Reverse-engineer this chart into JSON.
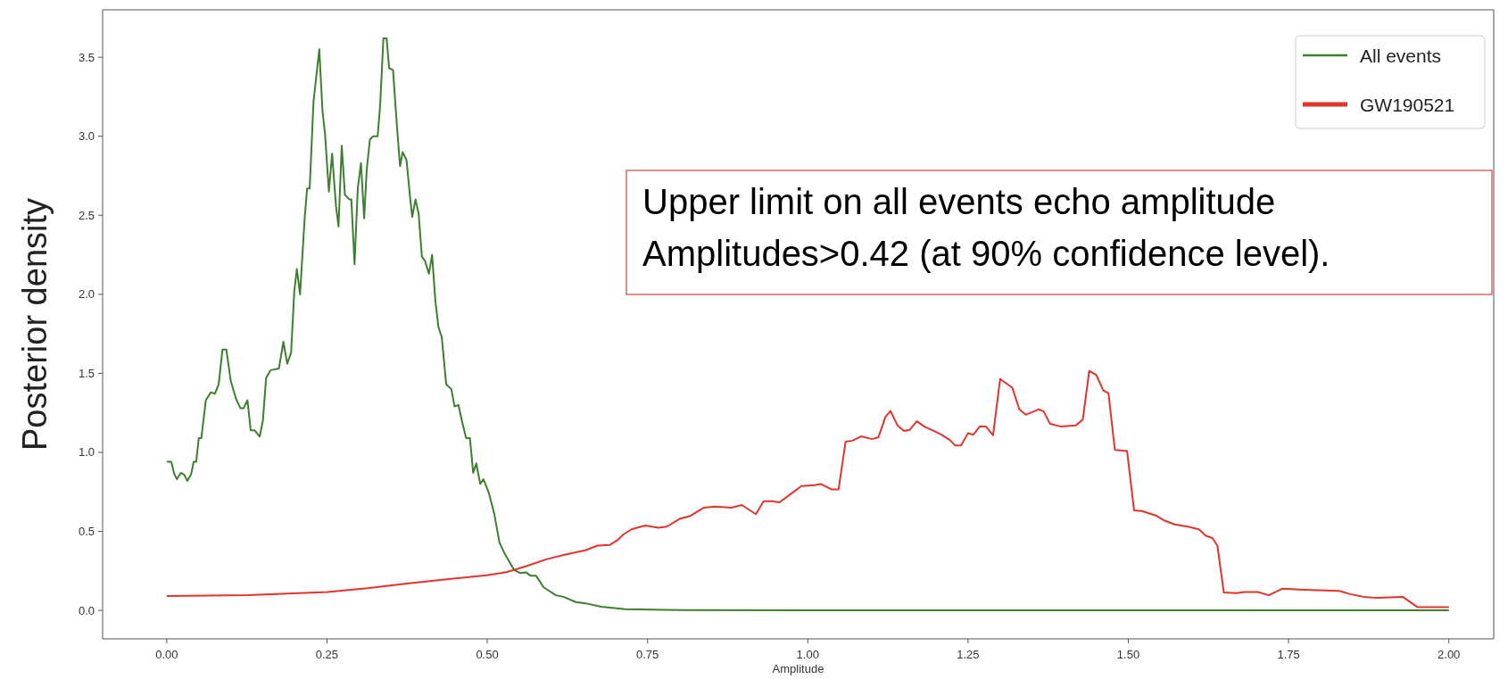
{
  "chart_data": {
    "type": "line",
    "xlabel": "Amplitude",
    "ylabel": "Posterior density",
    "xlim": [
      -0.1,
      2.07
    ],
    "ylim": [
      -0.18,
      3.8
    ],
    "xticks": [
      {
        "value": 0,
        "label": "0.00"
      },
      {
        "value": 0.25,
        "label": "0.25"
      },
      {
        "value": 0.5,
        "label": "0.50"
      },
      {
        "value": 0.75,
        "label": "0.75"
      },
      {
        "value": 1,
        "label": "1.00"
      },
      {
        "value": 1.25,
        "label": "1.25"
      },
      {
        "value": 1.5,
        "label": "1.50"
      },
      {
        "value": 1.75,
        "label": "1.75"
      },
      {
        "value": 2,
        "label": "2.00"
      }
    ],
    "yticks": [
      {
        "value": 0,
        "label": "0.0"
      },
      {
        "value": 0.5,
        "label": "0.5"
      },
      {
        "value": 1,
        "label": "1.0"
      },
      {
        "value": 1.5,
        "label": "1.5"
      },
      {
        "value": 2,
        "label": "2.0"
      },
      {
        "value": 2.5,
        "label": "2.5"
      },
      {
        "value": 3,
        "label": "3.0"
      },
      {
        "value": 3.5,
        "label": "3.5"
      }
    ],
    "grid": false,
    "legend": "top right",
    "marker": "none",
    "line_style": "solid",
    "annotations": [
      "Upper limit on all events echo amplitude",
      "Amplitudes>0.42 (at 90% confidence level)."
    ],
    "series": [
      {
        "name": "All events",
        "color": "#3d7f2f",
        "x": [
          0,
          0.007,
          0.012,
          0.016,
          0.022,
          0.027,
          0.032,
          0.038,
          0.042,
          0.046,
          0.05,
          0.054,
          0.061,
          0.069,
          0.075,
          0.081,
          0.087,
          0.093,
          0.1,
          0.108,
          0.115,
          0.12,
          0.126,
          0.131,
          0.137,
          0.145,
          0.15,
          0.155,
          0.162,
          0.175,
          0.182,
          0.188,
          0.194,
          0.199,
          0.203,
          0.208,
          0.215,
          0.219,
          0.223,
          0.229,
          0.238,
          0.243,
          0.247,
          0.253,
          0.258,
          0.264,
          0.268,
          0.273,
          0.278,
          0.285,
          0.288,
          0.293,
          0.298,
          0.303,
          0.308,
          0.312,
          0.317,
          0.322,
          0.329,
          0.333,
          0.338,
          0.343,
          0.347,
          0.353,
          0.359,
          0.364,
          0.368,
          0.374,
          0.38,
          0.383,
          0.388,
          0.393,
          0.398,
          0.403,
          0.409,
          0.414,
          0.419,
          0.424,
          0.429,
          0.436,
          0.444,
          0.449,
          0.455,
          0.461,
          0.467,
          0.473,
          0.478,
          0.483,
          0.489,
          0.494,
          0.502,
          0.511,
          0.519,
          0.527,
          0.542,
          0.551,
          0.561,
          0.567,
          0.576,
          0.588,
          0.607,
          0.619,
          0.638,
          0.653,
          0.678,
          0.715,
          0.777,
          1,
          1.5,
          2
        ],
        "values": [
          0.94,
          0.94,
          0.86,
          0.83,
          0.87,
          0.86,
          0.82,
          0.86,
          0.94,
          0.94,
          1.09,
          1.09,
          1.33,
          1.38,
          1.37,
          1.43,
          1.65,
          1.65,
          1.45,
          1.34,
          1.28,
          1.28,
          1.33,
          1.14,
          1.14,
          1.1,
          1.2,
          1.47,
          1.52,
          1.53,
          1.7,
          1.56,
          1.63,
          2.02,
          2.16,
          2,
          2.47,
          2.67,
          2.67,
          3.22,
          3.55,
          3.16,
          3.01,
          2.65,
          2.89,
          2.56,
          2.43,
          2.94,
          2.63,
          2.6,
          2.6,
          2.19,
          2.67,
          2.83,
          2.48,
          2.79,
          2.98,
          3,
          3,
          3.2,
          3.62,
          3.62,
          3.43,
          3.42,
          3.07,
          2.81,
          2.9,
          2.85,
          2.6,
          2.49,
          2.6,
          2.51,
          2.24,
          2.21,
          2.13,
          2.25,
          1.96,
          1.79,
          1.73,
          1.43,
          1.4,
          1.29,
          1.3,
          1.19,
          1.09,
          1.09,
          0.87,
          0.93,
          0.8,
          0.83,
          0.75,
          0.61,
          0.43,
          0.36,
          0.255,
          0.237,
          0.24,
          0.22,
          0.22,
          0.146,
          0.096,
          0.086,
          0.053,
          0.045,
          0.023,
          0.008,
          0.003,
          0,
          0,
          0
        ]
      },
      {
        "name": "GW190521",
        "color": "#e0352b",
        "x": [
          0,
          0.127,
          0.251,
          0.313,
          0.375,
          0.437,
          0.499,
          0.53,
          0.561,
          0.592,
          0.622,
          0.653,
          0.672,
          0.691,
          0.703,
          0.712,
          0.725,
          0.746,
          0.767,
          0.78,
          0.801,
          0.817,
          0.838,
          0.855,
          0.881,
          0.897,
          0.919,
          0.931,
          0.944,
          0.956,
          0.973,
          0.99,
          1.011,
          1.02,
          1.037,
          1.048,
          1.059,
          1.07,
          1.083,
          1.1,
          1.11,
          1.121,
          1.129,
          1.14,
          1.15,
          1.159,
          1.17,
          1.182,
          1.197,
          1.209,
          1.222,
          1.23,
          1.239,
          1.25,
          1.258,
          1.268,
          1.278,
          1.289,
          1.3,
          1.319,
          1.33,
          1.34,
          1.36,
          1.368,
          1.378,
          1.395,
          1.418,
          1.429,
          1.439,
          1.45,
          1.461,
          1.469,
          1.479,
          1.498,
          1.509,
          1.521,
          1.542,
          1.555,
          1.572,
          1.593,
          1.61,
          1.621,
          1.631,
          1.639,
          1.649,
          1.669,
          1.681,
          1.702,
          1.719,
          1.74,
          1.774,
          1.829,
          1.846,
          1.867,
          1.888,
          1.928,
          1.951,
          2
        ],
        "values": [
          0.091,
          0.096,
          0.116,
          0.14,
          0.17,
          0.197,
          0.222,
          0.242,
          0.28,
          0.323,
          0.354,
          0.38,
          0.41,
          0.414,
          0.444,
          0.479,
          0.513,
          0.537,
          0.523,
          0.53,
          0.581,
          0.598,
          0.65,
          0.657,
          0.65,
          0.667,
          0.609,
          0.691,
          0.691,
          0.684,
          0.735,
          0.787,
          0.793,
          0.8,
          0.766,
          0.766,
          1.067,
          1.074,
          1.101,
          1.084,
          1.094,
          1.224,
          1.262,
          1.17,
          1.135,
          1.142,
          1.197,
          1.163,
          1.135,
          1.111,
          1.077,
          1.043,
          1.043,
          1.122,
          1.111,
          1.163,
          1.163,
          1.108,
          1.464,
          1.409,
          1.272,
          1.238,
          1.272,
          1.259,
          1.18,
          1.163,
          1.17,
          1.207,
          1.515,
          1.491,
          1.392,
          1.375,
          1.016,
          1.009,
          0.633,
          0.629,
          0.602,
          0.571,
          0.544,
          0.53,
          0.513,
          0.472,
          0.458,
          0.41,
          0.113,
          0.109,
          0.116,
          0.116,
          0.096,
          0.137,
          0.13,
          0.123,
          0.103,
          0.086,
          0.079,
          0.086,
          0.021,
          0.021
        ]
      }
    ]
  }
}
